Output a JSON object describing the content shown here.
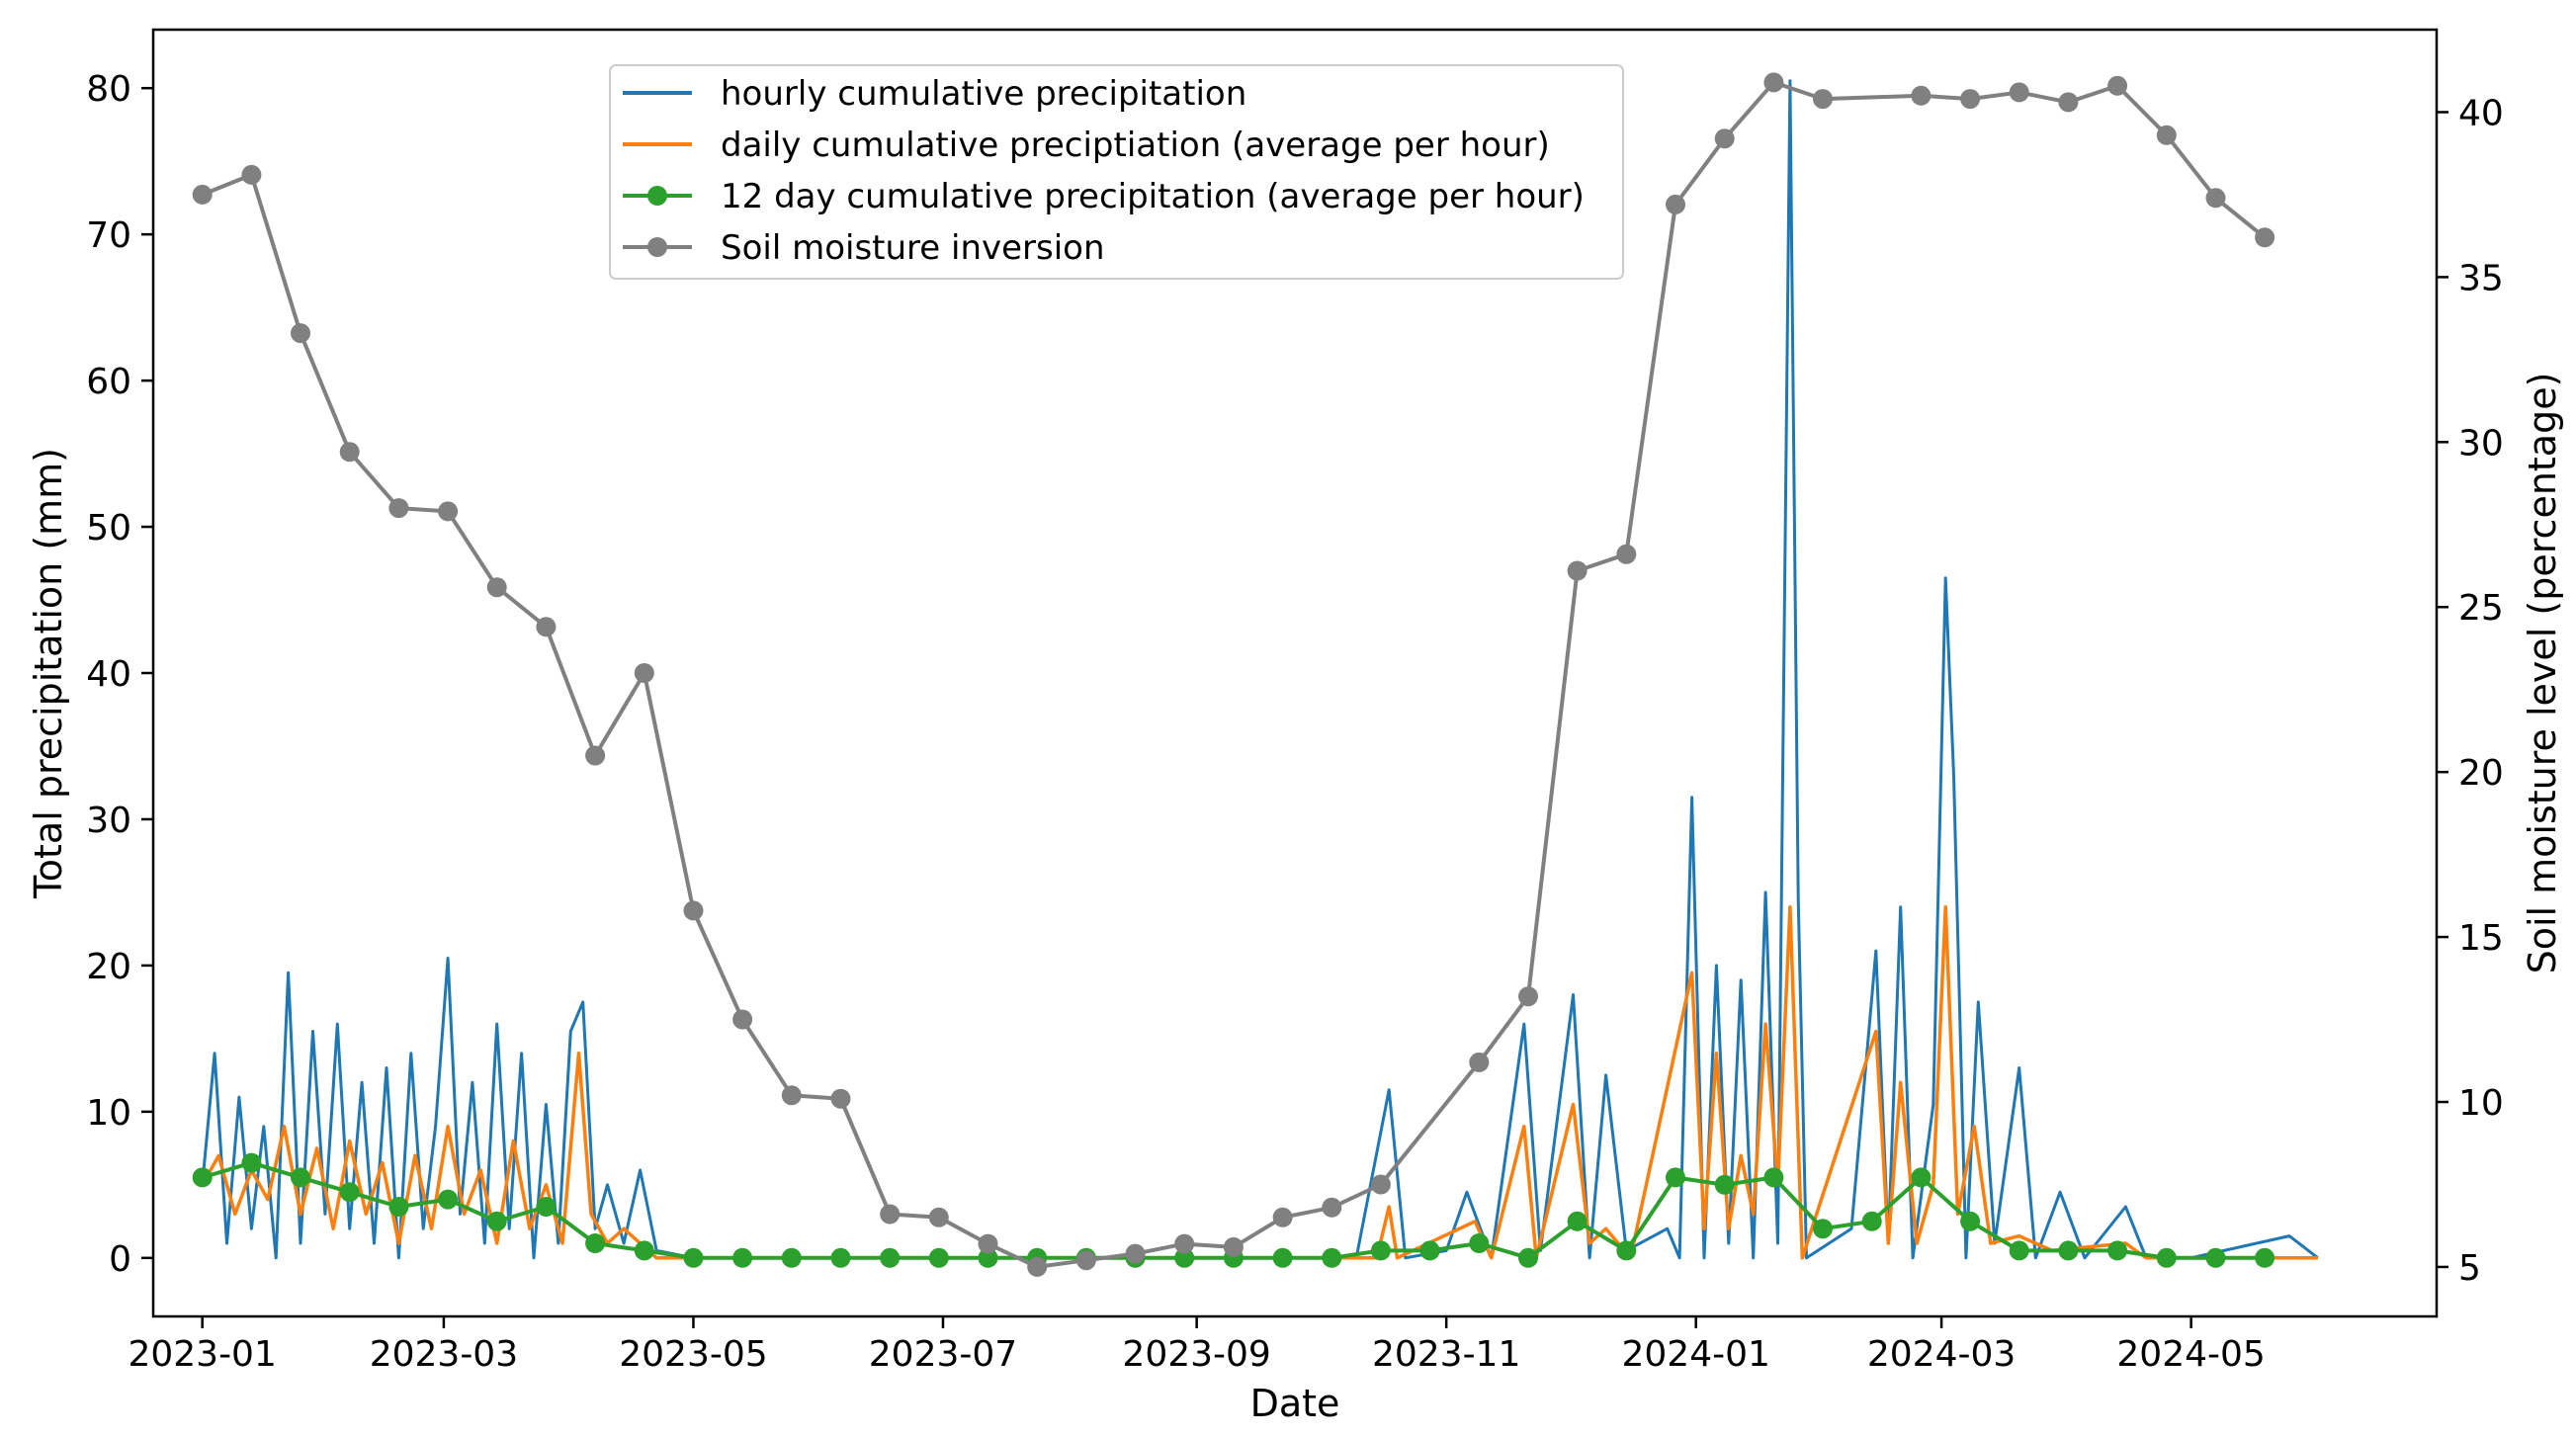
{
  "chart_data": {
    "type": "line",
    "xlabel": "Date",
    "ylabel_left": "Total precipitation (mm)",
    "ylabel_right": "Soil moisture level (percentage)",
    "x_range": [
      "2022-12-20",
      "2024-06-30"
    ],
    "ylim_left": [
      -4,
      84
    ],
    "ylim_right": [
      3.5,
      42.5
    ],
    "x_ticks": [
      {
        "date": "2023-01-01",
        "label": "2023-01"
      },
      {
        "date": "2023-03-01",
        "label": "2023-03"
      },
      {
        "date": "2023-05-01",
        "label": "2023-05"
      },
      {
        "date": "2023-07-01",
        "label": "2023-07"
      },
      {
        "date": "2023-09-01",
        "label": "2023-09"
      },
      {
        "date": "2023-11-01",
        "label": "2023-11"
      },
      {
        "date": "2024-01-01",
        "label": "2024-01"
      },
      {
        "date": "2024-03-01",
        "label": "2024-03"
      },
      {
        "date": "2024-05-01",
        "label": "2024-05"
      }
    ],
    "y_ticks_left": [
      0,
      10,
      20,
      30,
      40,
      50,
      60,
      70,
      80
    ],
    "y_ticks_right": [
      5,
      10,
      15,
      20,
      25,
      30,
      35,
      40
    ],
    "legend": {
      "position": "upper-center",
      "entries": [
        {
          "label": "hourly cumulative precipitation",
          "color": "#1f77b4",
          "marker": false
        },
        {
          "label": "daily cumulative preciptiation (average per hour)",
          "color": "#ff7f0e",
          "marker": false
        },
        {
          "label": "12 day cumulative precipitation (average per hour)",
          "color": "#2ca02c",
          "marker": true
        },
        {
          "label": "Soil moisture inversion",
          "color": "#808080",
          "marker": true
        }
      ]
    },
    "series": [
      {
        "name": "hourly cumulative precipitation",
        "axis": "left",
        "color": "#1f77b4",
        "note": "dense hourly signal; key peaks listed",
        "points": [
          [
            "2023-01-01",
            5
          ],
          [
            "2023-01-04",
            14
          ],
          [
            "2023-01-07",
            1
          ],
          [
            "2023-01-10",
            11
          ],
          [
            "2023-01-13",
            2
          ],
          [
            "2023-01-16",
            9
          ],
          [
            "2023-01-19",
            0
          ],
          [
            "2023-01-22",
            19.5
          ],
          [
            "2023-01-25",
            1
          ],
          [
            "2023-01-28",
            15.5
          ],
          [
            "2023-01-31",
            3
          ],
          [
            "2023-02-03",
            16
          ],
          [
            "2023-02-06",
            2
          ],
          [
            "2023-02-09",
            12
          ],
          [
            "2023-02-12",
            1
          ],
          [
            "2023-02-15",
            13
          ],
          [
            "2023-02-18",
            0
          ],
          [
            "2023-02-21",
            14
          ],
          [
            "2023-02-24",
            2
          ],
          [
            "2023-02-27",
            9
          ],
          [
            "2023-03-02",
            20.5
          ],
          [
            "2023-03-05",
            3
          ],
          [
            "2023-03-08",
            12
          ],
          [
            "2023-03-11",
            1
          ],
          [
            "2023-03-14",
            16
          ],
          [
            "2023-03-17",
            2
          ],
          [
            "2023-03-20",
            14
          ],
          [
            "2023-03-23",
            0
          ],
          [
            "2023-03-26",
            10.5
          ],
          [
            "2023-03-29",
            1
          ],
          [
            "2023-04-01",
            15.5
          ],
          [
            "2023-04-04",
            17.5
          ],
          [
            "2023-04-07",
            2
          ],
          [
            "2023-04-10",
            5
          ],
          [
            "2023-04-14",
            1
          ],
          [
            "2023-04-18",
            6
          ],
          [
            "2023-04-22",
            0.5
          ],
          [
            "2023-05-01",
            0
          ],
          [
            "2023-07-01",
            0
          ],
          [
            "2023-10-10",
            0
          ],
          [
            "2023-10-18",
            11.5
          ],
          [
            "2023-10-22",
            0
          ],
          [
            "2023-11-01",
            0.5
          ],
          [
            "2023-11-06",
            4.5
          ],
          [
            "2023-11-12",
            0
          ],
          [
            "2023-11-20",
            16
          ],
          [
            "2023-11-24",
            0.5
          ],
          [
            "2023-12-02",
            18
          ],
          [
            "2023-12-06",
            0
          ],
          [
            "2023-12-10",
            12.5
          ],
          [
            "2023-12-15",
            0.5
          ],
          [
            "2023-12-25",
            2
          ],
          [
            "2023-12-28",
            0
          ],
          [
            "2023-12-31",
            31.5
          ],
          [
            "2024-01-03",
            0
          ],
          [
            "2024-01-06",
            20
          ],
          [
            "2024-01-09",
            1
          ],
          [
            "2024-01-12",
            19
          ],
          [
            "2024-01-15",
            0
          ],
          [
            "2024-01-18",
            25
          ],
          [
            "2024-01-21",
            1
          ],
          [
            "2024-01-24",
            80.5
          ],
          [
            "2024-01-26",
            24.5
          ],
          [
            "2024-01-28",
            0
          ],
          [
            "2024-02-08",
            2
          ],
          [
            "2024-02-14",
            21
          ],
          [
            "2024-02-17",
            1
          ],
          [
            "2024-02-20",
            24
          ],
          [
            "2024-02-23",
            0
          ],
          [
            "2024-02-28",
            10.5
          ],
          [
            "2024-03-02",
            46.5
          ],
          [
            "2024-03-04",
            33
          ],
          [
            "2024-03-07",
            0
          ],
          [
            "2024-03-10",
            17.5
          ],
          [
            "2024-03-14",
            1
          ],
          [
            "2024-03-20",
            13
          ],
          [
            "2024-03-24",
            0
          ],
          [
            "2024-03-30",
            4.5
          ],
          [
            "2024-04-05",
            0
          ],
          [
            "2024-04-15",
            3.5
          ],
          [
            "2024-04-20",
            0
          ],
          [
            "2024-05-01",
            0
          ],
          [
            "2024-05-25",
            1.5
          ],
          [
            "2024-06-01",
            0
          ]
        ]
      },
      {
        "name": "daily cumulative preciptiation (average per hour)",
        "axis": "left",
        "color": "#ff7f0e",
        "points": [
          [
            "2023-01-01",
            5
          ],
          [
            "2023-01-05",
            7
          ],
          [
            "2023-01-09",
            3
          ],
          [
            "2023-01-13",
            6
          ],
          [
            "2023-01-17",
            4
          ],
          [
            "2023-01-21",
            9
          ],
          [
            "2023-01-25",
            3
          ],
          [
            "2023-01-29",
            7.5
          ],
          [
            "2023-02-02",
            2
          ],
          [
            "2023-02-06",
            8
          ],
          [
            "2023-02-10",
            3
          ],
          [
            "2023-02-14",
            6.5
          ],
          [
            "2023-02-18",
            1
          ],
          [
            "2023-02-22",
            7
          ],
          [
            "2023-02-26",
            2
          ],
          [
            "2023-03-02",
            9
          ],
          [
            "2023-03-06",
            3
          ],
          [
            "2023-03-10",
            6
          ],
          [
            "2023-03-14",
            1
          ],
          [
            "2023-03-18",
            8
          ],
          [
            "2023-03-22",
            2
          ],
          [
            "2023-03-26",
            5
          ],
          [
            "2023-03-30",
            1
          ],
          [
            "2023-04-03",
            14
          ],
          [
            "2023-04-06",
            3
          ],
          [
            "2023-04-10",
            1
          ],
          [
            "2023-04-14",
            2
          ],
          [
            "2023-04-18",
            1
          ],
          [
            "2023-04-22",
            0
          ],
          [
            "2023-10-15",
            0
          ],
          [
            "2023-10-18",
            3.5
          ],
          [
            "2023-10-20",
            0
          ],
          [
            "2023-11-08",
            2.5
          ],
          [
            "2023-11-12",
            0
          ],
          [
            "2023-11-20",
            9
          ],
          [
            "2023-11-23",
            0
          ],
          [
            "2023-12-02",
            10.5
          ],
          [
            "2023-12-06",
            1
          ],
          [
            "2023-12-10",
            2
          ],
          [
            "2023-12-16",
            0
          ],
          [
            "2023-12-31",
            19.5
          ],
          [
            "2024-01-03",
            2
          ],
          [
            "2024-01-06",
            14
          ],
          [
            "2024-01-09",
            2
          ],
          [
            "2024-01-12",
            7
          ],
          [
            "2024-01-15",
            3
          ],
          [
            "2024-01-18",
            16
          ],
          [
            "2024-01-21",
            5
          ],
          [
            "2024-01-24",
            24
          ],
          [
            "2024-01-27",
            0
          ],
          [
            "2024-02-14",
            15.5
          ],
          [
            "2024-02-17",
            1
          ],
          [
            "2024-02-20",
            12
          ],
          [
            "2024-02-24",
            1
          ],
          [
            "2024-02-28",
            5
          ],
          [
            "2024-03-02",
            24
          ],
          [
            "2024-03-05",
            3
          ],
          [
            "2024-03-09",
            9
          ],
          [
            "2024-03-13",
            1
          ],
          [
            "2024-03-20",
            1.5
          ],
          [
            "2024-03-28",
            0.5
          ],
          [
            "2024-04-15",
            1
          ],
          [
            "2024-04-20",
            0
          ],
          [
            "2024-06-01",
            0
          ]
        ]
      },
      {
        "name": "12 day cumulative precipitation (average per hour)",
        "axis": "left",
        "color": "#2ca02c",
        "points": [
          [
            "2023-01-01",
            5.5
          ],
          [
            "2023-01-13",
            6.5
          ],
          [
            "2023-01-25",
            5.5
          ],
          [
            "2023-02-06",
            4.5
          ],
          [
            "2023-02-18",
            3.5
          ],
          [
            "2023-03-02",
            4
          ],
          [
            "2023-03-14",
            2.5
          ],
          [
            "2023-03-26",
            3.5
          ],
          [
            "2023-04-07",
            1
          ],
          [
            "2023-04-19",
            0.5
          ],
          [
            "2023-05-01",
            0
          ],
          [
            "2023-05-13",
            0
          ],
          [
            "2023-05-25",
            0
          ],
          [
            "2023-06-06",
            0
          ],
          [
            "2023-06-18",
            0
          ],
          [
            "2023-06-30",
            0
          ],
          [
            "2023-07-12",
            0
          ],
          [
            "2023-07-24",
            0
          ],
          [
            "2023-08-05",
            0
          ],
          [
            "2023-08-17",
            0
          ],
          [
            "2023-08-29",
            0
          ],
          [
            "2023-09-10",
            0
          ],
          [
            "2023-09-22",
            0
          ],
          [
            "2023-10-04",
            0
          ],
          [
            "2023-10-16",
            0.5
          ],
          [
            "2023-10-28",
            0.5
          ],
          [
            "2023-11-09",
            1
          ],
          [
            "2023-11-21",
            0
          ],
          [
            "2023-12-03",
            2.5
          ],
          [
            "2023-12-15",
            0.5
          ],
          [
            "2023-12-27",
            5.5
          ],
          [
            "2024-01-08",
            5
          ],
          [
            "2024-01-20",
            5.5
          ],
          [
            "2024-02-01",
            2
          ],
          [
            "2024-02-13",
            2.5
          ],
          [
            "2024-02-25",
            5.5
          ],
          [
            "2024-03-08",
            2.5
          ],
          [
            "2024-03-20",
            0.5
          ],
          [
            "2024-04-01",
            0.5
          ],
          [
            "2024-04-13",
            0.5
          ],
          [
            "2024-04-25",
            0
          ],
          [
            "2024-05-07",
            0
          ],
          [
            "2024-05-19",
            0
          ]
        ]
      },
      {
        "name": "Soil moisture inversion",
        "axis": "right",
        "color": "#808080",
        "points": [
          [
            "2023-01-01",
            37.5
          ],
          [
            "2023-01-13",
            38.1
          ],
          [
            "2023-01-25",
            33.3
          ],
          [
            "2023-02-06",
            29.7
          ],
          [
            "2023-02-18",
            28
          ],
          [
            "2023-03-02",
            27.9
          ],
          [
            "2023-03-14",
            25.6
          ],
          [
            "2023-03-26",
            24.4
          ],
          [
            "2023-04-07",
            20.5
          ],
          [
            "2023-04-19",
            23
          ],
          [
            "2023-05-01",
            15.8
          ],
          [
            "2023-05-13",
            12.5
          ],
          [
            "2023-05-25",
            10.2
          ],
          [
            "2023-06-06",
            10.1
          ],
          [
            "2023-06-18",
            6.6
          ],
          [
            "2023-06-30",
            6.5
          ],
          [
            "2023-07-12",
            5.7
          ],
          [
            "2023-07-24",
            5
          ],
          [
            "2023-08-05",
            5.2
          ],
          [
            "2023-08-17",
            5.4
          ],
          [
            "2023-08-29",
            5.7
          ],
          [
            "2023-09-10",
            5.6
          ],
          [
            "2023-09-22",
            6.5
          ],
          [
            "2023-10-04",
            6.8
          ],
          [
            "2023-10-16",
            7.5
          ],
          [
            "2023-11-09",
            11.2
          ],
          [
            "2023-11-21",
            13.2
          ],
          [
            "2023-12-03",
            26.1
          ],
          [
            "2023-12-15",
            26.6
          ],
          [
            "2023-12-27",
            37.2
          ],
          [
            "2024-01-08",
            39.2
          ],
          [
            "2024-01-20",
            40.9
          ],
          [
            "2024-02-01",
            40.4
          ],
          [
            "2024-02-25",
            40.5
          ],
          [
            "2024-03-08",
            40.4
          ],
          [
            "2024-03-20",
            40.6
          ],
          [
            "2024-04-01",
            40.3
          ],
          [
            "2024-04-13",
            40.8
          ],
          [
            "2024-04-25",
            39.3
          ],
          [
            "2024-05-07",
            37.4
          ],
          [
            "2024-05-19",
            36.2
          ]
        ]
      }
    ]
  }
}
